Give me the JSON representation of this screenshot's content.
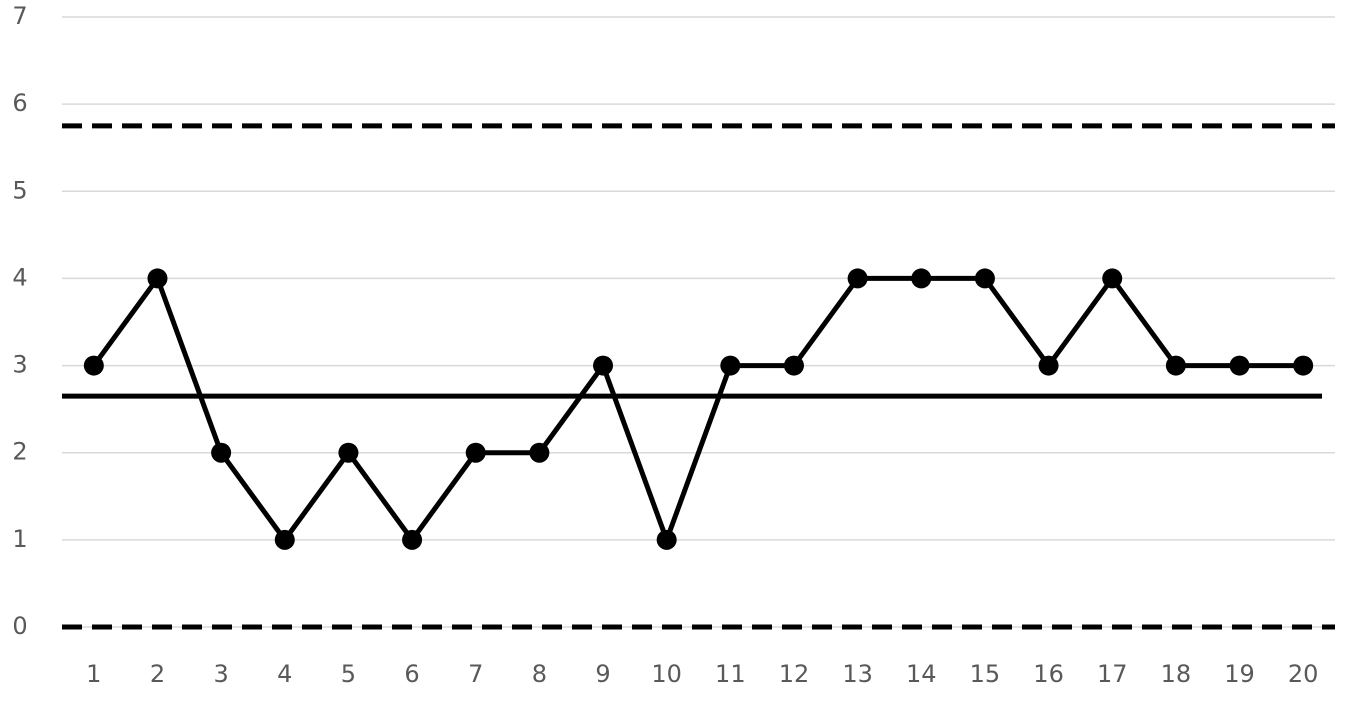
{
  "chart_data": {
    "type": "line",
    "categories": [
      "1",
      "2",
      "3",
      "4",
      "5",
      "6",
      "7",
      "8",
      "9",
      "10",
      "11",
      "12",
      "13",
      "14",
      "15",
      "16",
      "17",
      "18",
      "19",
      "20"
    ],
    "series": [
      {
        "color": "#000000",
        "values": [
          3,
          4,
          2,
          1,
          2,
          1,
          2,
          2,
          3,
          1,
          3,
          3,
          4,
          4,
          4,
          3,
          4,
          3,
          3,
          3
        ]
      }
    ],
    "reference_lines": [
      {
        "value": 5.75,
        "dashed": true
      },
      {
        "value": 2.65,
        "dashed": false
      },
      {
        "value": 0,
        "dashed": true
      }
    ],
    "ylim": [
      0,
      7
    ],
    "yticks": [
      0,
      1,
      2,
      3,
      4,
      5,
      6,
      7
    ],
    "grid": true
  }
}
